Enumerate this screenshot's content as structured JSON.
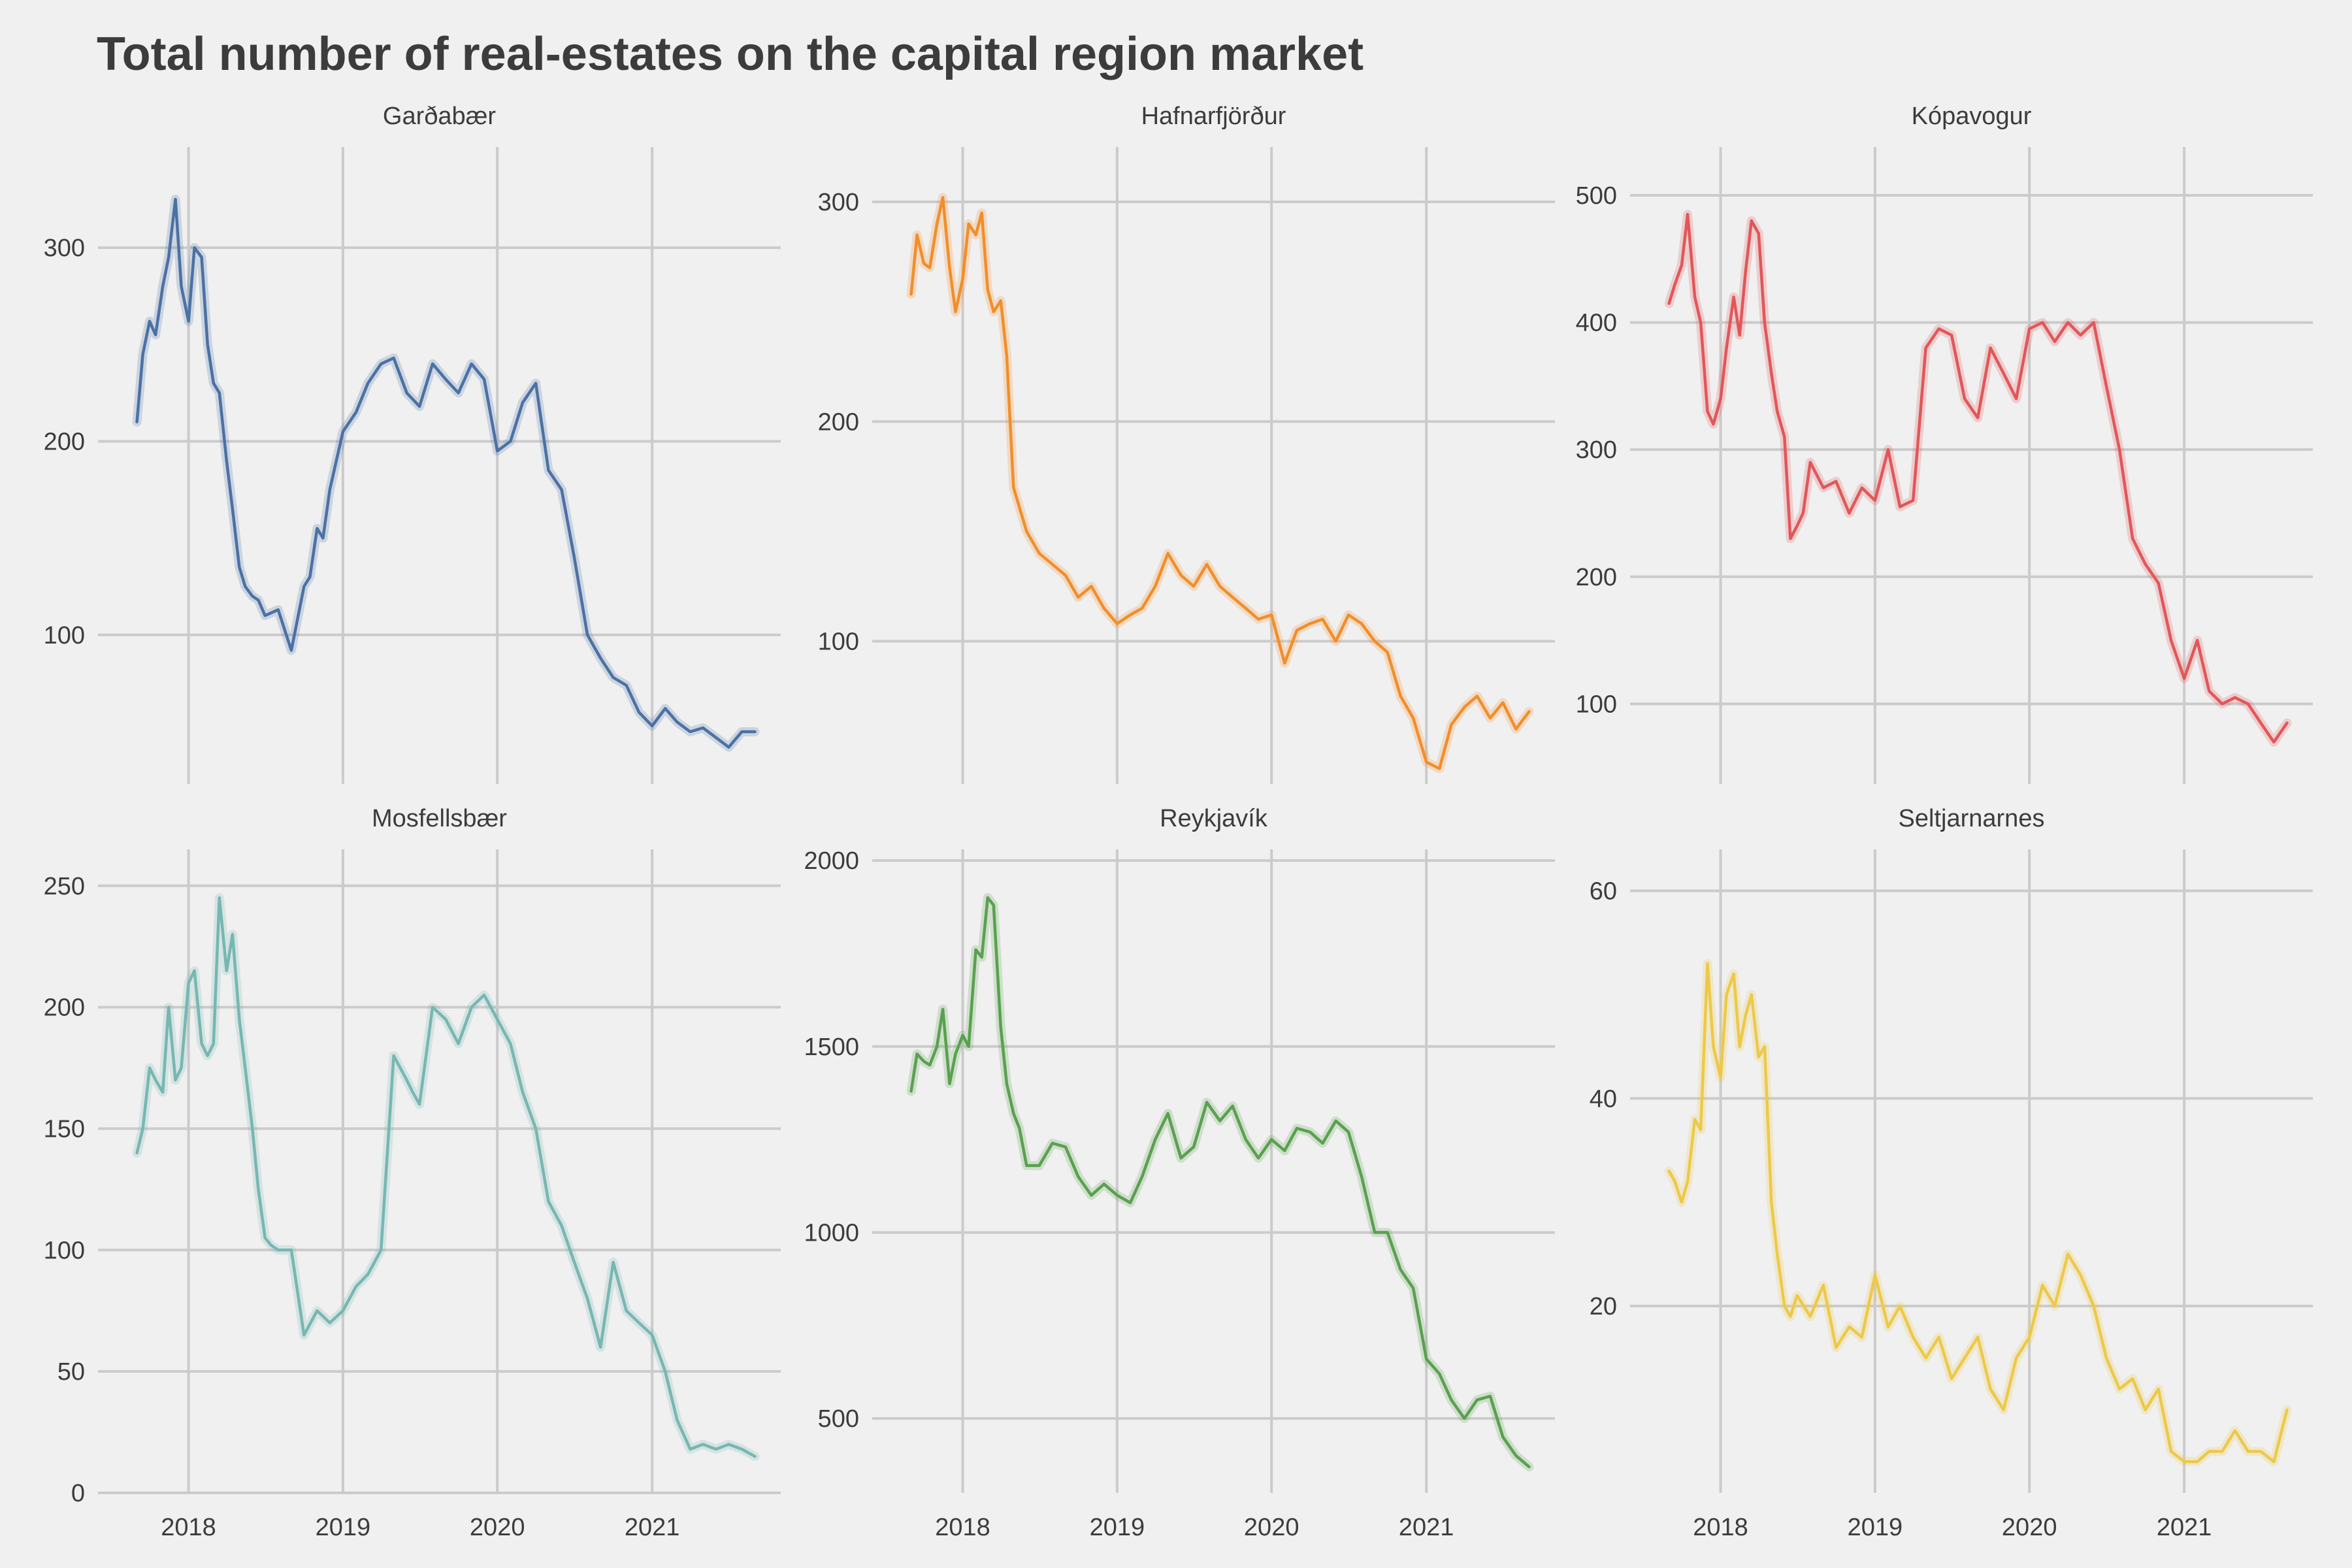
{
  "title": "Total number of real-estates on the capital region market",
  "chart_data": {
    "type": "line",
    "title": "Total number of real-estates on the capital region market",
    "layout": "3x2 small multiples, shared x axis per column, free y axis per panel",
    "grid": true,
    "x_ticks": [
      "2018",
      "2019",
      "2020",
      "2021"
    ],
    "x_range": [
      "2017-06-01",
      "2021-11-01"
    ],
    "panels": [
      {
        "name": "Garðabær",
        "color": "#4b71a5",
        "yticks": [
          100,
          200,
          300
        ],
        "ylim": [
          23,
          352
        ],
        "x": [
          "2017-09-01",
          "2017-09-15",
          "2017-10-01",
          "2017-10-15",
          "2017-11-01",
          "2017-11-15",
          "2017-12-01",
          "2017-12-15",
          "2018-01-01",
          "2018-01-15",
          "2018-02-01",
          "2018-02-15",
          "2018-03-01",
          "2018-03-15",
          "2018-04-01",
          "2018-04-15",
          "2018-05-01",
          "2018-05-15",
          "2018-06-01",
          "2018-06-15",
          "2018-07-01",
          "2018-08-01",
          "2018-09-01",
          "2018-10-01",
          "2018-10-15",
          "2018-11-01",
          "2018-11-15",
          "2018-12-01",
          "2019-01-01",
          "2019-02-01",
          "2019-03-01",
          "2019-04-01",
          "2019-05-01",
          "2019-06-01",
          "2019-07-01",
          "2019-08-01",
          "2019-09-01",
          "2019-10-01",
          "2019-11-01",
          "2019-12-01",
          "2020-01-01",
          "2020-02-01",
          "2020-03-01",
          "2020-04-01",
          "2020-05-01",
          "2020-06-01",
          "2020-07-01",
          "2020-08-01",
          "2020-09-01",
          "2020-10-01",
          "2020-11-01",
          "2020-12-01",
          "2021-01-01",
          "2021-02-01",
          "2021-03-01",
          "2021-04-01",
          "2021-05-01",
          "2021-06-01",
          "2021-07-01",
          "2021-08-01",
          "2021-09-01"
        ],
        "y": [
          210,
          245,
          262,
          255,
          280,
          295,
          325,
          280,
          262,
          300,
          295,
          250,
          230,
          225,
          190,
          165,
          135,
          125,
          120,
          118,
          110,
          113,
          92,
          125,
          130,
          155,
          150,
          175,
          205,
          215,
          230,
          240,
          243,
          225,
          218,
          240,
          232,
          225,
          240,
          232,
          195,
          200,
          220,
          230,
          185,
          175,
          140,
          100,
          88,
          78,
          74,
          60,
          53,
          62,
          55,
          50,
          52,
          47,
          42,
          50,
          50
        ]
      },
      {
        "name": "Hafnarfjörður",
        "color": "#f28e2b",
        "yticks": [
          100,
          200,
          300
        ],
        "ylim": [
          35,
          325
        ],
        "x": [
          "2017-09-01",
          "2017-09-15",
          "2017-10-01",
          "2017-10-15",
          "2017-11-01",
          "2017-11-15",
          "2017-12-01",
          "2017-12-15",
          "2018-01-01",
          "2018-01-15",
          "2018-02-01",
          "2018-02-15",
          "2018-03-01",
          "2018-03-15",
          "2018-04-01",
          "2018-04-15",
          "2018-05-01",
          "2018-06-01",
          "2018-07-01",
          "2018-08-01",
          "2018-09-01",
          "2018-10-01",
          "2018-11-01",
          "2018-12-01",
          "2019-01-01",
          "2019-02-01",
          "2019-03-01",
          "2019-04-01",
          "2019-05-01",
          "2019-06-01",
          "2019-07-01",
          "2019-08-01",
          "2019-09-01",
          "2019-10-01",
          "2019-11-01",
          "2019-12-01",
          "2020-01-01",
          "2020-02-01",
          "2020-03-01",
          "2020-04-01",
          "2020-05-01",
          "2020-06-01",
          "2020-07-01",
          "2020-08-01",
          "2020-09-01",
          "2020-10-01",
          "2020-11-01",
          "2020-12-01",
          "2021-01-01",
          "2021-02-01",
          "2021-03-01",
          "2021-04-01",
          "2021-05-01",
          "2021-06-01",
          "2021-07-01",
          "2021-08-01",
          "2021-09-01"
        ],
        "y": [
          258,
          285,
          272,
          270,
          290,
          302,
          270,
          250,
          265,
          290,
          285,
          295,
          260,
          250,
          255,
          230,
          170,
          150,
          140,
          135,
          130,
          120,
          125,
          115,
          108,
          112,
          115,
          125,
          140,
          130,
          125,
          135,
          125,
          120,
          115,
          110,
          112,
          90,
          105,
          108,
          110,
          100,
          112,
          108,
          100,
          95,
          75,
          65,
          45,
          42,
          62,
          70,
          75,
          65,
          72,
          60,
          68
        ]
      },
      {
        "name": "Kópavogur",
        "color": "#e15759",
        "yticks": [
          100,
          200,
          300,
          400,
          500
        ],
        "ylim": [
          37,
          538
        ],
        "x": [
          "2017-09-01",
          "2017-09-15",
          "2017-10-01",
          "2017-10-15",
          "2017-11-01",
          "2017-11-15",
          "2017-12-01",
          "2017-12-15",
          "2018-01-01",
          "2018-01-15",
          "2018-02-01",
          "2018-02-15",
          "2018-03-01",
          "2018-03-15",
          "2018-04-01",
          "2018-04-15",
          "2018-05-01",
          "2018-05-15",
          "2018-06-01",
          "2018-06-15",
          "2018-07-01",
          "2018-07-15",
          "2018-08-01",
          "2018-09-01",
          "2018-10-01",
          "2018-11-01",
          "2018-12-01",
          "2019-01-01",
          "2019-02-01",
          "2019-03-01",
          "2019-04-01",
          "2019-05-01",
          "2019-06-01",
          "2019-07-01",
          "2019-08-01",
          "2019-09-01",
          "2019-10-01",
          "2019-11-01",
          "2019-12-01",
          "2020-01-01",
          "2020-02-01",
          "2020-03-01",
          "2020-04-01",
          "2020-05-01",
          "2020-06-01",
          "2020-07-01",
          "2020-08-01",
          "2020-09-01",
          "2020-10-01",
          "2020-11-01",
          "2020-12-01",
          "2021-01-01",
          "2021-02-01",
          "2021-03-01",
          "2021-04-01",
          "2021-05-01",
          "2021-06-01",
          "2021-07-01",
          "2021-08-01",
          "2021-09-01"
        ],
        "y": [
          415,
          430,
          445,
          485,
          420,
          400,
          330,
          320,
          340,
          380,
          420,
          390,
          440,
          480,
          470,
          400,
          360,
          330,
          310,
          230,
          240,
          250,
          290,
          270,
          275,
          250,
          270,
          260,
          300,
          255,
          260,
          380,
          395,
          390,
          340,
          325,
          380,
          360,
          340,
          395,
          400,
          385,
          400,
          390,
          400,
          350,
          300,
          230,
          210,
          195,
          150,
          120,
          150,
          110,
          100,
          105,
          100,
          85,
          70,
          85
        ]
      },
      {
        "name": "Mosfellsbær",
        "color": "#76b7b2",
        "yticks": [
          0,
          50,
          100,
          150,
          200,
          250
        ],
        "ylim": [
          0,
          265
        ],
        "x": [
          "2017-09-01",
          "2017-09-15",
          "2017-10-01",
          "2017-10-15",
          "2017-11-01",
          "2017-11-15",
          "2017-12-01",
          "2017-12-15",
          "2018-01-01",
          "2018-01-15",
          "2018-02-01",
          "2018-02-15",
          "2018-03-01",
          "2018-03-15",
          "2018-04-01",
          "2018-04-15",
          "2018-05-01",
          "2018-05-15",
          "2018-06-01",
          "2018-06-15",
          "2018-07-01",
          "2018-07-15",
          "2018-08-01",
          "2018-09-01",
          "2018-10-01",
          "2018-11-01",
          "2018-12-01",
          "2019-01-01",
          "2019-02-01",
          "2019-03-01",
          "2019-04-01",
          "2019-05-01",
          "2019-06-01",
          "2019-06-15",
          "2019-07-01",
          "2019-08-01",
          "2019-09-01",
          "2019-10-01",
          "2019-11-01",
          "2019-12-01",
          "2020-01-01",
          "2020-02-01",
          "2020-03-01",
          "2020-04-01",
          "2020-05-01",
          "2020-06-01",
          "2020-07-01",
          "2020-08-01",
          "2020-09-01",
          "2020-10-01",
          "2020-11-01",
          "2020-12-01",
          "2021-01-01",
          "2021-02-01",
          "2021-03-01",
          "2021-04-01",
          "2021-05-01",
          "2021-06-01",
          "2021-07-01",
          "2021-08-01",
          "2021-09-01"
        ],
        "y": [
          140,
          150,
          175,
          170,
          165,
          200,
          170,
          175,
          210,
          215,
          185,
          180,
          185,
          245,
          215,
          230,
          195,
          175,
          150,
          125,
          105,
          102,
          100,
          100,
          65,
          75,
          70,
          75,
          85,
          90,
          100,
          180,
          170,
          165,
          160,
          200,
          195,
          185,
          200,
          205,
          195,
          185,
          165,
          150,
          120,
          110,
          95,
          80,
          60,
          95,
          75,
          70,
          65,
          50,
          30,
          18,
          20,
          18,
          20,
          18,
          15
        ]
      },
      {
        "name": "Reykjavík",
        "color": "#59a14f",
        "yticks": [
          500,
          1000,
          1500,
          2000
        ],
        "ylim": [
          300,
          2030
        ],
        "x": [
          "2017-09-01",
          "2017-09-15",
          "2017-10-01",
          "2017-10-15",
          "2017-11-01",
          "2017-11-15",
          "2017-12-01",
          "2017-12-15",
          "2018-01-01",
          "2018-01-15",
          "2018-02-01",
          "2018-02-15",
          "2018-03-01",
          "2018-03-15",
          "2018-04-01",
          "2018-04-15",
          "2018-05-01",
          "2018-05-15",
          "2018-06-01",
          "2018-07-01",
          "2018-08-01",
          "2018-09-01",
          "2018-10-01",
          "2018-11-01",
          "2018-12-01",
          "2019-01-01",
          "2019-02-01",
          "2019-03-01",
          "2019-04-01",
          "2019-05-01",
          "2019-06-01",
          "2019-07-01",
          "2019-08-01",
          "2019-09-01",
          "2019-10-01",
          "2019-11-01",
          "2019-12-01",
          "2020-01-01",
          "2020-02-01",
          "2020-03-01",
          "2020-04-01",
          "2020-05-01",
          "2020-06-01",
          "2020-07-01",
          "2020-08-01",
          "2020-09-01",
          "2020-10-01",
          "2020-11-01",
          "2020-12-01",
          "2021-01-01",
          "2021-02-01",
          "2021-03-01",
          "2021-04-01",
          "2021-05-01",
          "2021-06-01",
          "2021-07-01",
          "2021-08-01",
          "2021-09-01"
        ],
        "y": [
          1380,
          1480,
          1460,
          1450,
          1500,
          1600,
          1400,
          1480,
          1530,
          1500,
          1760,
          1740,
          1900,
          1880,
          1550,
          1400,
          1320,
          1280,
          1180,
          1180,
          1240,
          1230,
          1150,
          1100,
          1130,
          1100,
          1080,
          1150,
          1250,
          1320,
          1200,
          1230,
          1350,
          1300,
          1340,
          1250,
          1200,
          1250,
          1220,
          1280,
          1270,
          1240,
          1300,
          1270,
          1150,
          1000,
          1000,
          900,
          850,
          660,
          620,
          550,
          500,
          550,
          560,
          450,
          400,
          370
        ]
      },
      {
        "name": "Seltjarnarnes",
        "color": "#edc948",
        "yticks": [
          20,
          40,
          60
        ],
        "ylim": [
          2,
          64
        ],
        "x": [
          "2017-09-01",
          "2017-09-15",
          "2017-10-01",
          "2017-10-15",
          "2017-11-01",
          "2017-11-15",
          "2017-12-01",
          "2017-12-15",
          "2018-01-01",
          "2018-01-15",
          "2018-02-01",
          "2018-02-15",
          "2018-03-01",
          "2018-03-15",
          "2018-04-01",
          "2018-04-15",
          "2018-05-01",
          "2018-05-15",
          "2018-06-01",
          "2018-06-15",
          "2018-07-01",
          "2018-08-01",
          "2018-09-01",
          "2018-10-01",
          "2018-11-01",
          "2018-12-01",
          "2019-01-01",
          "2019-02-01",
          "2019-03-01",
          "2019-04-01",
          "2019-05-01",
          "2019-06-01",
          "2019-07-01",
          "2019-08-01",
          "2019-09-01",
          "2019-10-01",
          "2019-11-01",
          "2019-12-01",
          "2020-01-01",
          "2020-02-01",
          "2020-03-01",
          "2020-04-01",
          "2020-05-01",
          "2020-06-01",
          "2020-07-01",
          "2020-08-01",
          "2020-09-01",
          "2020-10-01",
          "2020-11-01",
          "2020-12-01",
          "2021-01-01",
          "2021-02-01",
          "2021-03-01",
          "2021-04-01",
          "2021-05-01",
          "2021-06-01",
          "2021-07-01",
          "2021-08-01",
          "2021-09-01"
        ],
        "y": [
          33,
          32,
          30,
          32,
          38,
          37,
          53,
          45,
          42,
          50,
          52,
          45,
          48,
          50,
          44,
          45,
          30,
          25,
          20,
          19,
          21,
          19,
          22,
          16,
          18,
          17,
          23,
          18,
          20,
          17,
          15,
          17,
          13,
          15,
          17,
          12,
          10,
          15,
          17,
          22,
          20,
          25,
          23,
          20,
          15,
          12,
          13,
          10,
          12,
          6,
          5,
          5,
          6,
          6,
          8,
          6,
          6,
          5,
          10
        ]
      }
    ]
  }
}
